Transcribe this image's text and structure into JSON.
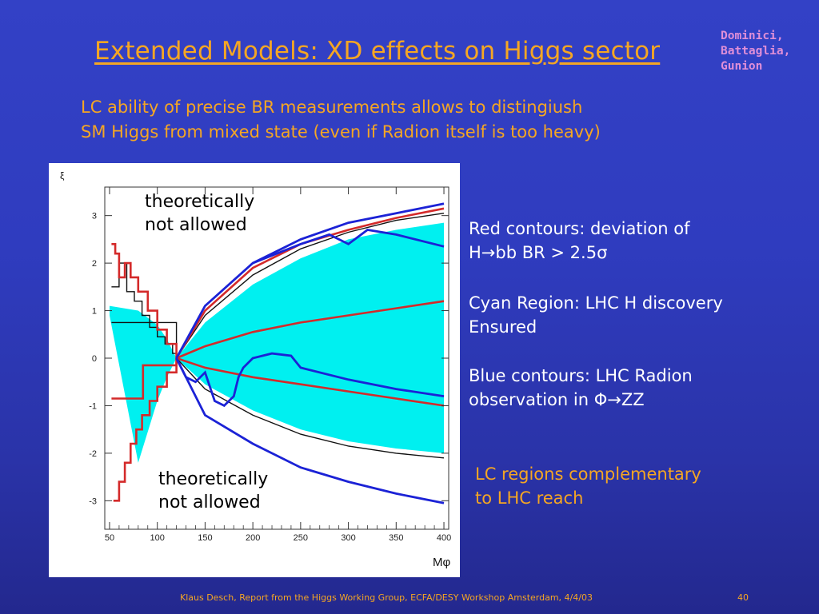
{
  "slide": {
    "title": "Extended Models: XD effects on Higgs sector",
    "authors": [
      "Dominici,",
      "Battaglia,",
      "Gunion"
    ],
    "intro_lines": [
      "LC ability of precise BR measurements allows to distingiush",
      "SM Higgs from mixed state (even if Radion itself is too heavy)"
    ],
    "annotation_top": [
      "theoretically",
      "not allowed"
    ],
    "annotation_bottom": [
      "theoretically",
      "not allowed"
    ],
    "notes": {
      "red": [
        "Red contours: deviation of",
        "H→bb BR > 2.5σ"
      ],
      "cyan": [
        "Cyan Region: LHC H discovery",
        "Ensured"
      ],
      "blue": [
        "Blue contours: LHC Radion",
        "observation in Φ→ZZ"
      ]
    },
    "conclusion": [
      "LC regions complementary",
      "to LHC reach"
    ],
    "footer": "Klaus Desch, Report from the Higgs Working Group, ECFA/DESY Workshop Amsterdam, 4/4/03",
    "page_number": "40"
  },
  "chart_data": {
    "type": "line",
    "xlabel": "Mφ",
    "ylabel": "ξ",
    "xlim": [
      45,
      405
    ],
    "ylim": [
      -3.6,
      3.6
    ],
    "x_ticks": [
      50,
      100,
      150,
      200,
      250,
      300,
      350,
      400
    ],
    "y_ticks": [
      3,
      2,
      1,
      0,
      -1,
      -2,
      -3
    ],
    "x_tick_labels": [
      "50",
      "100",
      "150",
      "200",
      "250",
      "300",
      "350",
      "400"
    ],
    "y_tick_labels": [
      "3",
      "2",
      "1",
      "0",
      "-1",
      "-2",
      "-3"
    ],
    "colors": {
      "cyan_region": "#00f0f0",
      "red": "#d42a2a",
      "blue": "#1b22d6",
      "black": "#111111"
    },
    "cyan_region": {
      "x": [
        50,
        80,
        100,
        110,
        120,
        150,
        200,
        250,
        300,
        350,
        400
      ],
      "upper": [
        1.1,
        1.0,
        0.7,
        0.4,
        0.0,
        0.75,
        1.55,
        2.1,
        2.5,
        2.7,
        2.85
      ],
      "lower": [
        0.9,
        -2.2,
        -0.9,
        -0.4,
        0.0,
        -0.55,
        -1.1,
        -1.5,
        -1.75,
        -1.9,
        -2.0
      ]
    },
    "black_contours": [
      {
        "x": [
          52,
          60,
          68,
          76,
          84,
          92,
          100,
          108,
          116,
          120
        ],
        "y": [
          1.5,
          2.0,
          1.4,
          1.2,
          0.9,
          0.65,
          0.45,
          0.3,
          0.1,
          0.0
        ]
      },
      {
        "x": [
          120,
          150,
          200,
          250,
          300,
          350,
          400
        ],
        "y": [
          0.0,
          0.9,
          1.75,
          2.3,
          2.65,
          2.9,
          3.05
        ]
      },
      {
        "x": [
          120,
          150,
          200,
          250,
          300,
          350,
          400
        ],
        "y": [
          0.0,
          -0.65,
          -1.2,
          -1.6,
          -1.85,
          -2.0,
          -2.1
        ]
      },
      {
        "x": [
          52,
          120
        ],
        "y": [
          0.75,
          0.0
        ]
      }
    ],
    "red_contours": [
      {
        "x": [
          52,
          56,
          60,
          66,
          72,
          80,
          90,
          100,
          110,
          120
        ],
        "y": [
          2.4,
          2.2,
          1.7,
          2.0,
          1.7,
          1.4,
          1.0,
          0.6,
          0.3,
          0.0
        ]
      },
      {
        "x": [
          120,
          150,
          200,
          250,
          300,
          350,
          400
        ],
        "y": [
          0.0,
          1.0,
          1.9,
          2.4,
          2.7,
          2.95,
          3.15
        ]
      },
      {
        "x": [
          120,
          150,
          200,
          250,
          300,
          350,
          400
        ],
        "y": [
          0.0,
          0.25,
          0.55,
          0.75,
          0.9,
          1.05,
          1.2
        ]
      },
      {
        "x": [
          120,
          150,
          200,
          250,
          300,
          350,
          400
        ],
        "y": [
          0.0,
          -0.2,
          -0.4,
          -0.55,
          -0.7,
          -0.85,
          -1.0
        ]
      },
      {
        "x": [
          54,
          60,
          66,
          72,
          78,
          84,
          92,
          100,
          110,
          120
        ],
        "y": [
          -3.0,
          -2.6,
          -2.2,
          -1.8,
          -1.5,
          -1.2,
          -0.9,
          -0.6,
          -0.3,
          0.0
        ]
      },
      {
        "x": [
          52,
          80,
          85,
          120
        ],
        "y": [
          -0.85,
          -0.85,
          -0.15,
          0.0
        ]
      }
    ],
    "blue_contours": [
      {
        "x": [
          120,
          150,
          200,
          250,
          300,
          350,
          400
        ],
        "y": [
          0.0,
          1.1,
          2.0,
          2.5,
          2.85,
          3.05,
          3.25
        ]
      },
      {
        "x": [
          120,
          150,
          200,
          250,
          300,
          350,
          400
        ],
        "y": [
          0.0,
          -1.2,
          -1.8,
          -2.3,
          -2.6,
          -2.85,
          -3.05
        ]
      },
      {
        "x": [
          120,
          130,
          140,
          150,
          160,
          170,
          180,
          185,
          190,
          200,
          220,
          240,
          250,
          300,
          350,
          400
        ],
        "y": [
          0.0,
          -0.4,
          -0.5,
          -0.3,
          -0.9,
          -1.0,
          -0.8,
          -0.4,
          -0.2,
          0.0,
          0.1,
          0.05,
          -0.2,
          -0.45,
          -0.65,
          -0.8
        ]
      },
      {
        "x": [
          200,
          250,
          280,
          300,
          320,
          350,
          400
        ],
        "y": [
          2.0,
          2.4,
          2.6,
          2.4,
          2.7,
          2.6,
          2.35
        ]
      }
    ]
  }
}
